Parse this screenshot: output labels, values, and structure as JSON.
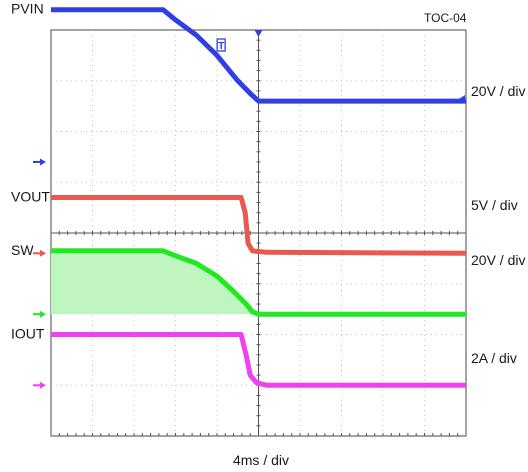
{
  "chart_data": {
    "type": "line",
    "title": "TOC-04",
    "xlabel": "4ms / div",
    "x_divisions": 10,
    "y_divisions": 8,
    "x_unit": "div",
    "grid": true,
    "top_marker": "T",
    "series": [
      {
        "name": "PVIN",
        "scale": "20V / div",
        "color": "#2f3fe6",
        "ground_div": 2.6,
        "points": [
          [
            0,
            3.0
          ],
          [
            2.7,
            3.0
          ],
          [
            3.0,
            2.8
          ],
          [
            3.5,
            2.5
          ],
          [
            4.0,
            2.1
          ],
          [
            4.5,
            1.6
          ],
          [
            4.8,
            1.35
          ],
          [
            5.0,
            1.2
          ],
          [
            10,
            1.2
          ]
        ]
      },
      {
        "name": "VOUT",
        "scale": "5V / div",
        "color": "#e8594f",
        "ground_div": 4.4,
        "points": [
          [
            0,
            1.1
          ],
          [
            4.58,
            1.1
          ],
          [
            4.68,
            0.8
          ],
          [
            4.75,
            0.2
          ],
          [
            4.85,
            0.05
          ],
          [
            5.2,
            0.02
          ],
          [
            10,
            0.0
          ]
        ]
      },
      {
        "name": "SW",
        "scale": "20V / div",
        "color": "#22e822",
        "fill": "#bff5bf",
        "ground_div": 5.6,
        "points": [
          [
            0,
            1.25
          ],
          [
            2.7,
            1.25
          ],
          [
            3.0,
            1.15
          ],
          [
            3.5,
            1.0
          ],
          [
            4.0,
            0.75
          ],
          [
            4.4,
            0.45
          ],
          [
            4.7,
            0.2
          ],
          [
            4.85,
            0.05
          ],
          [
            5.0,
            0.0
          ],
          [
            10,
            0.0
          ]
        ]
      },
      {
        "name": "IOUT",
        "scale": "2A / div",
        "color": "#f040f0",
        "ground_div": 7.0,
        "points": [
          [
            0,
            1.0
          ],
          [
            4.58,
            1.0
          ],
          [
            4.7,
            0.6
          ],
          [
            4.8,
            0.2
          ],
          [
            4.95,
            0.05
          ],
          [
            5.2,
            0.0
          ],
          [
            10,
            0.0
          ]
        ]
      }
    ]
  }
}
